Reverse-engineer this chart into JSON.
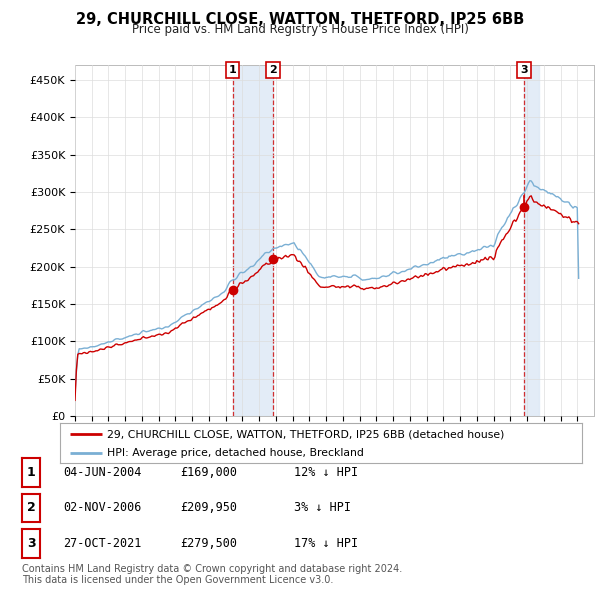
{
  "title": "29, CHURCHILL CLOSE, WATTON, THETFORD, IP25 6BB",
  "subtitle": "Price paid vs. HM Land Registry's House Price Index (HPI)",
  "ylim": [
    0,
    470000
  ],
  "yticks": [
    0,
    50000,
    100000,
    150000,
    200000,
    250000,
    300000,
    350000,
    400000,
    450000
  ],
  "ytick_labels": [
    "£0",
    "£50K",
    "£100K",
    "£150K",
    "£200K",
    "£250K",
    "£300K",
    "£350K",
    "£400K",
    "£450K"
  ],
  "line_color_property": "#cc0000",
  "line_color_hpi": "#7aafd4",
  "t1_year": 2004.42,
  "t2_year": 2006.83,
  "t3_year": 2021.82,
  "transaction_prices": [
    169000,
    209950,
    279500
  ],
  "table_entries": [
    {
      "label": "1",
      "date": "04-JUN-2004",
      "price": "£169,000",
      "hpi_diff": "12% ↓ HPI"
    },
    {
      "label": "2",
      "date": "02-NOV-2006",
      "price": "£209,950",
      "hpi_diff": "3% ↓ HPI"
    },
    {
      "label": "3",
      "date": "27-OCT-2021",
      "price": "£279,500",
      "hpi_diff": "17% ↓ HPI"
    }
  ],
  "legend_property": "29, CHURCHILL CLOSE, WATTON, THETFORD, IP25 6BB (detached house)",
  "legend_hpi": "HPI: Average price, detached house, Breckland",
  "footer": "Contains HM Land Registry data © Crown copyright and database right 2024.\nThis data is licensed under the Open Government Licence v3.0.",
  "background_color": "#ffffff",
  "grid_color": "#dddddd",
  "shade_color": "#dce8f5",
  "vline_color": "#cc0000"
}
